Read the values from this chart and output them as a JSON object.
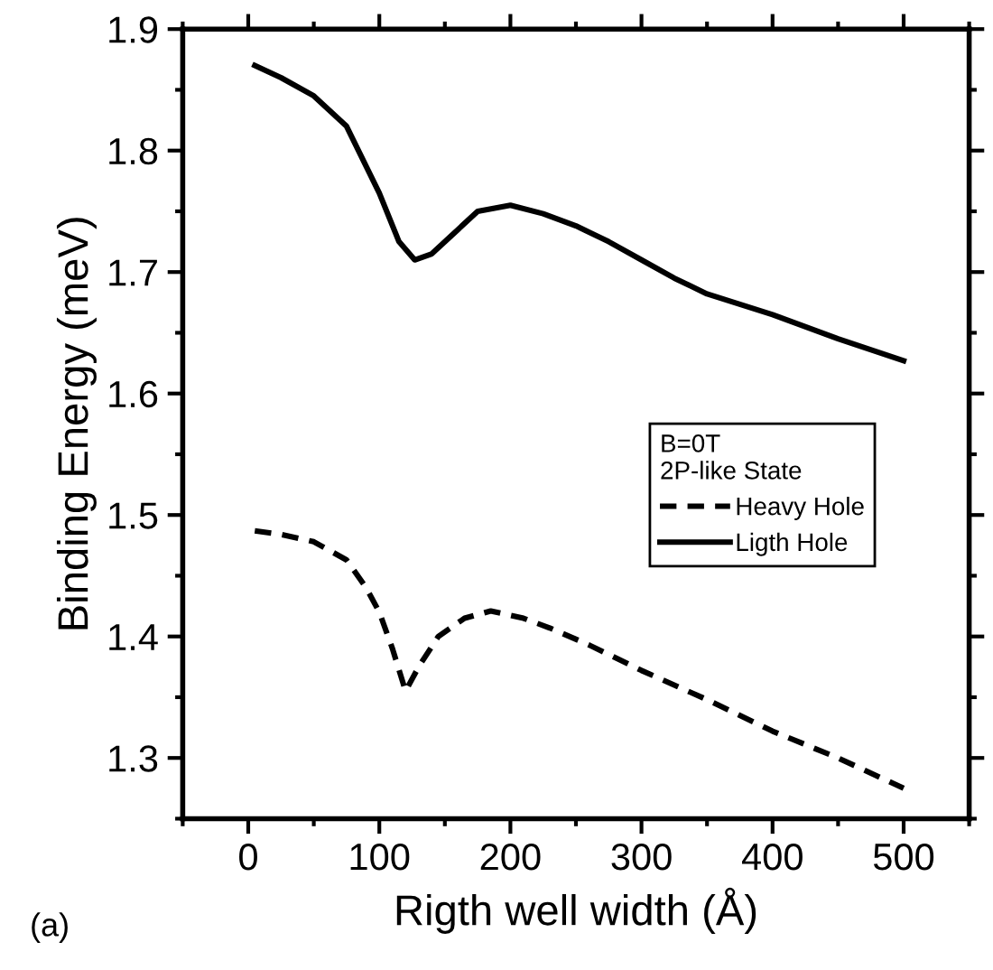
{
  "chart_data": {
    "type": "line",
    "xlabel": "Rigth well width (Å)",
    "ylabel": "Binding Energy (meV)",
    "legend_title": "B=0T\n2P-like State",
    "series": [
      {
        "name": "Heavy Hole",
        "color": "#000000",
        "line_style": "dashed",
        "x": [
          5,
          25,
          50,
          75,
          90,
          100,
          110,
          120,
          130,
          145,
          165,
          185,
          210,
          230,
          260,
          300,
          350,
          400,
          450,
          500
        ],
        "values": [
          1.487,
          1.484,
          1.478,
          1.463,
          1.44,
          1.42,
          1.39,
          1.355,
          1.375,
          1.4,
          1.415,
          1.421,
          1.415,
          1.407,
          1.393,
          1.372,
          1.348,
          1.322,
          1.3,
          1.275
        ]
      },
      {
        "name": "Ligth Hole",
        "color": "#000000",
        "line_style": "solid",
        "x": [
          5,
          25,
          50,
          75,
          100,
          115,
          127,
          140,
          160,
          175,
          200,
          225,
          250,
          275,
          300,
          325,
          350,
          400,
          450,
          500
        ],
        "values": [
          1.87,
          1.86,
          1.845,
          1.82,
          1.765,
          1.725,
          1.71,
          1.715,
          1.735,
          1.75,
          1.755,
          1.748,
          1.738,
          1.725,
          1.71,
          1.695,
          1.682,
          1.665,
          1.645,
          1.627
        ]
      }
    ],
    "xlim": [
      -50,
      550
    ],
    "xticks": [
      0,
      100,
      200,
      300,
      400,
      500
    ],
    "ylim": [
      1.25,
      1.9
    ],
    "yticks": [
      1.3,
      1.4,
      1.5,
      1.6,
      1.7,
      1.8,
      1.9
    ],
    "grid": false,
    "legend": "center right",
    "marker": "none",
    "annotations": [
      "(a)"
    ]
  }
}
